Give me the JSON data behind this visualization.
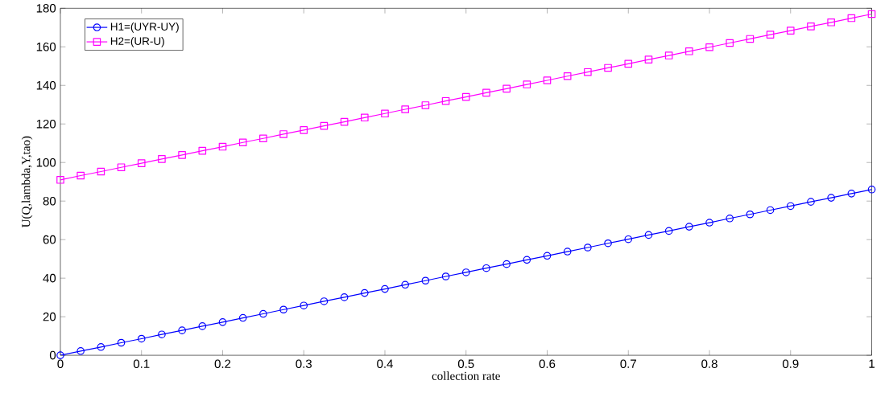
{
  "chart_data": {
    "type": "line",
    "xlabel": "collection rate",
    "ylabel": "U(Q,lambda,Y,tao)",
    "x": [
      0,
      0.025,
      0.05,
      0.075,
      0.1,
      0.125,
      0.15,
      0.175,
      0.2,
      0.225,
      0.25,
      0.275,
      0.3,
      0.325,
      0.35,
      0.375,
      0.4,
      0.425,
      0.45,
      0.475,
      0.5,
      0.525,
      0.55,
      0.575,
      0.6,
      0.625,
      0.65,
      0.675,
      0.7,
      0.725,
      0.75,
      0.775,
      0.8,
      0.825,
      0.85,
      0.875,
      0.9,
      0.925,
      0.95,
      0.975,
      1
    ],
    "series": [
      {
        "name": "H1=(UYR-UY)",
        "color": "#0000ff",
        "marker": "circle",
        "values": [
          0,
          2.2,
          4.3,
          6.5,
          8.6,
          10.8,
          12.9,
          15.1,
          17.2,
          19.4,
          21.5,
          23.7,
          25.8,
          28,
          30.1,
          32.3,
          34.4,
          36.6,
          38.7,
          40.9,
          43,
          45.2,
          47.3,
          49.5,
          51.6,
          53.8,
          55.9,
          58.1,
          60.2,
          62.4,
          64.5,
          66.7,
          68.8,
          71,
          73.1,
          75.3,
          77.4,
          79.6,
          81.7,
          83.9,
          86
        ]
      },
      {
        "name": "H2=(UR-U)",
        "color": "#ff00ff",
        "marker": "square",
        "values": [
          91,
          93.2,
          95.3,
          97.5,
          99.6,
          101.8,
          103.9,
          106.1,
          108.2,
          110.4,
          112.5,
          114.7,
          116.8,
          119,
          121.1,
          123.3,
          125.4,
          127.6,
          129.7,
          131.9,
          134,
          136.2,
          138.3,
          140.5,
          142.6,
          144.8,
          146.9,
          149.1,
          151.2,
          153.4,
          155.5,
          157.7,
          159.8,
          162,
          164.1,
          166.3,
          168.4,
          170.6,
          172.7,
          174.9,
          177
        ]
      }
    ],
    "xlim": [
      0,
      1
    ],
    "xticks": [
      0,
      0.1,
      0.2,
      0.3,
      0.4,
      0.5,
      0.6,
      0.7,
      0.8,
      0.9,
      1
    ],
    "ylim": [
      0,
      180
    ],
    "yticks": [
      0,
      20,
      40,
      60,
      80,
      100,
      120,
      140,
      160,
      180
    ],
    "grid": false,
    "legend": "top left",
    "line_style": "solid"
  }
}
